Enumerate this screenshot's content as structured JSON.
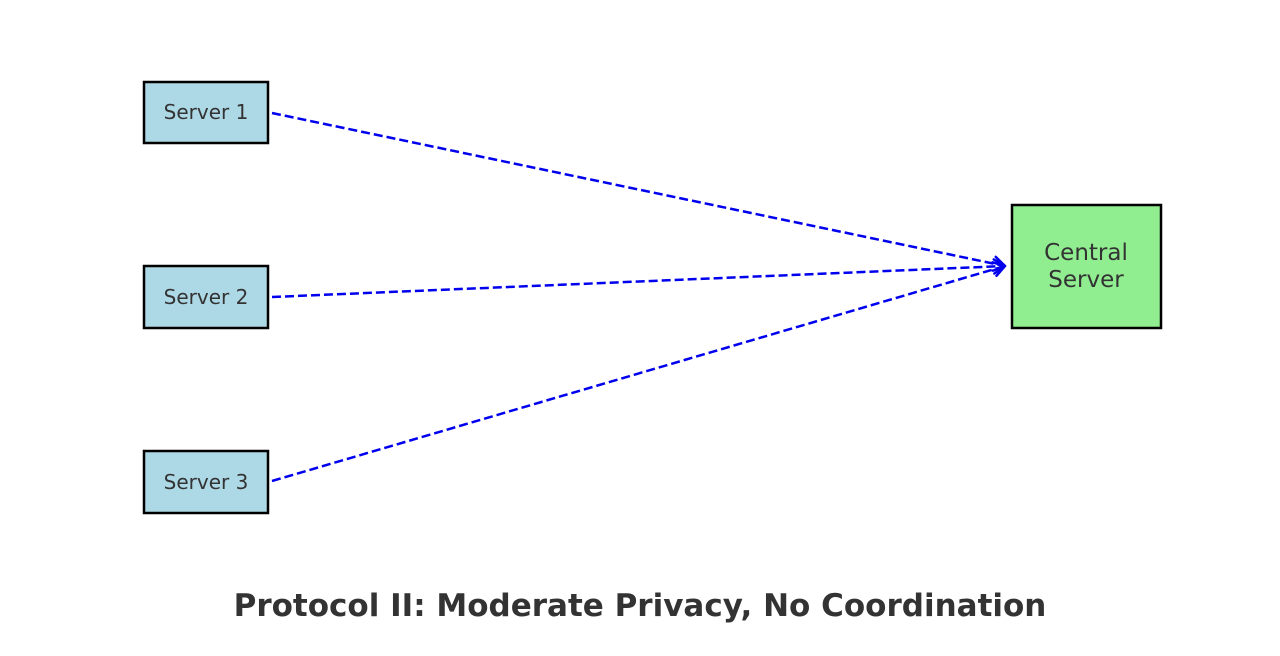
{
  "title": "Protocol II: Moderate Privacy, No Coordination",
  "colors": {
    "server_fill": "#add8e6",
    "central_fill": "#90ee90",
    "border": "#000000",
    "arrow": "#0000ee",
    "text": "#333333"
  },
  "nodes": {
    "server_1": {
      "label": "Server 1"
    },
    "server_2": {
      "label": "Server 2"
    },
    "server_3": {
      "label": "Server 3"
    },
    "central": {
      "label_lines": [
        "Central",
        "Server"
      ]
    }
  },
  "edges": [
    {
      "from": "server_1",
      "to": "central",
      "style": "dashed",
      "arrowhead": "open"
    },
    {
      "from": "server_2",
      "to": "central",
      "style": "dashed",
      "arrowhead": "open"
    },
    {
      "from": "server_3",
      "to": "central",
      "style": "dashed",
      "arrowhead": "open"
    }
  ]
}
